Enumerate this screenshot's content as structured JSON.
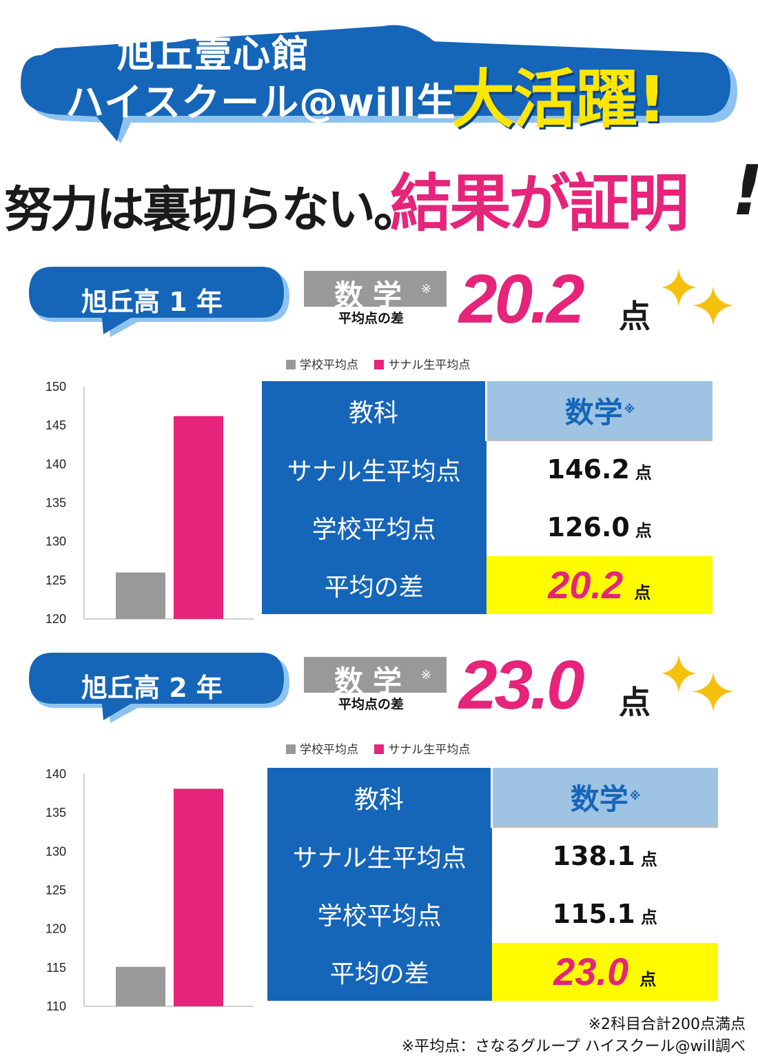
{
  "hero": {
    "line1": "旭丘壹心館",
    "line2": "ハイスクール@will生",
    "highlight": "大活躍!"
  },
  "tagline": {
    "lead": "努力は裏切らない。",
    "highlight": "結果が証明",
    "bang": "!"
  },
  "colors": {
    "brand_blue": "#1565b9",
    "accent_pink": "#e5247a",
    "school_gray": "#999999",
    "highlight_yellow": "#fffc00",
    "header_light_blue": "#9ec3e3"
  },
  "sections": [
    {
      "grade": "旭丘高 1 年",
      "subject": "数学",
      "subject_mark": "※",
      "caption": "平均点の差",
      "diff_big": "20.2",
      "diff_unit": "点",
      "legend": [
        "学校平均点",
        "サナル生平均点"
      ],
      "table": {
        "header_label": "教科",
        "header_subject": "数学",
        "header_mark": "※",
        "row_sanaru_label": "サナル生平均点",
        "row_sanaru_value": "146.2",
        "row_school_label": "学校平均点",
        "row_school_value": "126.0",
        "row_diff_label": "平均の差",
        "row_diff_value": "20.2",
        "unit": "点"
      },
      "chart_data": {
        "type": "bar",
        "categories": [
          "学校平均点",
          "サナル生平均点"
        ],
        "values": [
          126.0,
          146.2
        ],
        "ylim": [
          120,
          150
        ],
        "yticks": [
          120,
          125,
          130,
          135,
          140,
          145,
          150
        ],
        "series_colors": [
          "#999999",
          "#e5247a"
        ],
        "legend_position": "top"
      }
    },
    {
      "grade": "旭丘高 2 年",
      "subject": "数学",
      "subject_mark": "※",
      "caption": "平均点の差",
      "diff_big": "23.0",
      "diff_unit": "点",
      "legend": [
        "学校平均点",
        "サナル生平均点"
      ],
      "table": {
        "header_label": "教科",
        "header_subject": "数学",
        "header_mark": "※",
        "row_sanaru_label": "サナル生平均点",
        "row_sanaru_value": "138.1",
        "row_school_label": "学校平均点",
        "row_school_value": "115.1",
        "row_diff_label": "平均の差",
        "row_diff_value": "23.0",
        "unit": "点"
      },
      "chart_data": {
        "type": "bar",
        "categories": [
          "学校平均点",
          "サナル生平均点"
        ],
        "values": [
          115.1,
          138.1
        ],
        "ylim": [
          110,
          140
        ],
        "yticks": [
          110,
          115,
          120,
          125,
          130,
          135,
          140
        ],
        "series_colors": [
          "#999999",
          "#e5247a"
        ],
        "legend_position": "top"
      }
    }
  ],
  "footnotes": [
    "※2科目合計200点満点",
    "※平均点：さなるグループ ハイスクール@will調べ"
  ]
}
